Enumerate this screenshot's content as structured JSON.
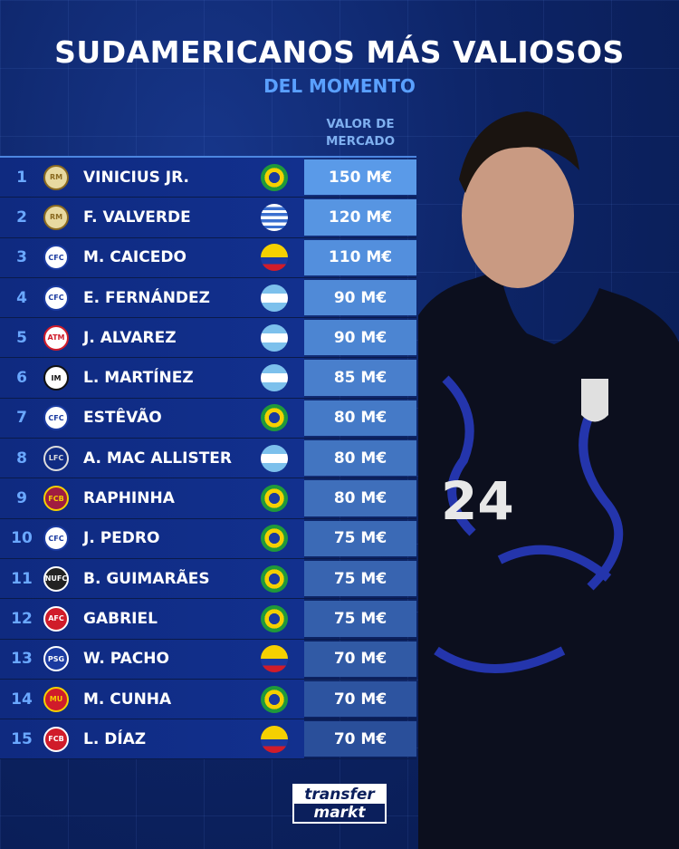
{
  "title": "SUDAMERICANOS MÁS VALIOSOS",
  "subtitle": "DEL MOMENTO",
  "column_header": [
    "VALOR DE",
    "MERCADO"
  ],
  "rows": [
    {
      "rank": "1",
      "club": "real-madrid",
      "name": "VINICIUS JR.",
      "flag": "brazil",
      "value": "150 M€"
    },
    {
      "rank": "2",
      "club": "real-madrid",
      "name": "F. VALVERDE",
      "flag": "uruguay",
      "value": "120 M€"
    },
    {
      "rank": "3",
      "club": "chelsea",
      "name": "M. CAICEDO",
      "flag": "ecuador",
      "value": "110 M€"
    },
    {
      "rank": "4",
      "club": "chelsea",
      "name": "E. FERNÁNDEZ",
      "flag": "argentina",
      "value": "90 M€"
    },
    {
      "rank": "5",
      "club": "atletico-madrid",
      "name": "J. ALVAREZ",
      "flag": "argentina",
      "value": "90 M€"
    },
    {
      "rank": "6",
      "club": "inter",
      "name": "L. MARTÍNEZ",
      "flag": "argentina",
      "value": "85 M€"
    },
    {
      "rank": "7",
      "club": "chelsea",
      "name": "ESTÊVÃO",
      "flag": "brazil",
      "value": "80 M€"
    },
    {
      "rank": "8",
      "club": "liverpool",
      "name": "A. MAC ALLISTER",
      "flag": "argentina",
      "value": "80 M€"
    },
    {
      "rank": "9",
      "club": "barcelona",
      "name": "RAPHINHA",
      "flag": "brazil",
      "value": "80 M€"
    },
    {
      "rank": "10",
      "club": "chelsea",
      "name": "J. PEDRO",
      "flag": "brazil",
      "value": "75 M€"
    },
    {
      "rank": "11",
      "club": "newcastle",
      "name": "B. GUIMARÃES",
      "flag": "brazil",
      "value": "75 M€"
    },
    {
      "rank": "12",
      "club": "arsenal",
      "name": "GABRIEL",
      "flag": "brazil",
      "value": "75 M€"
    },
    {
      "rank": "13",
      "club": "psg",
      "name": "W. PACHO",
      "flag": "ecuador",
      "value": "70 M€"
    },
    {
      "rank": "14",
      "club": "manchester-united",
      "name": "M. CUNHA",
      "flag": "brazil",
      "value": "70 M€"
    },
    {
      "rank": "15",
      "club": "bayern",
      "name": "L. DÍAZ",
      "flag": "colombia",
      "value": "70 M€"
    }
  ],
  "logo": {
    "line1": "transfer",
    "line2": "markt"
  },
  "colors": {
    "accent": "#5aa0ff",
    "value_top": "#5a9ae8",
    "value_bottom": "#2a4f9a",
    "background": "#0b1f5c"
  }
}
